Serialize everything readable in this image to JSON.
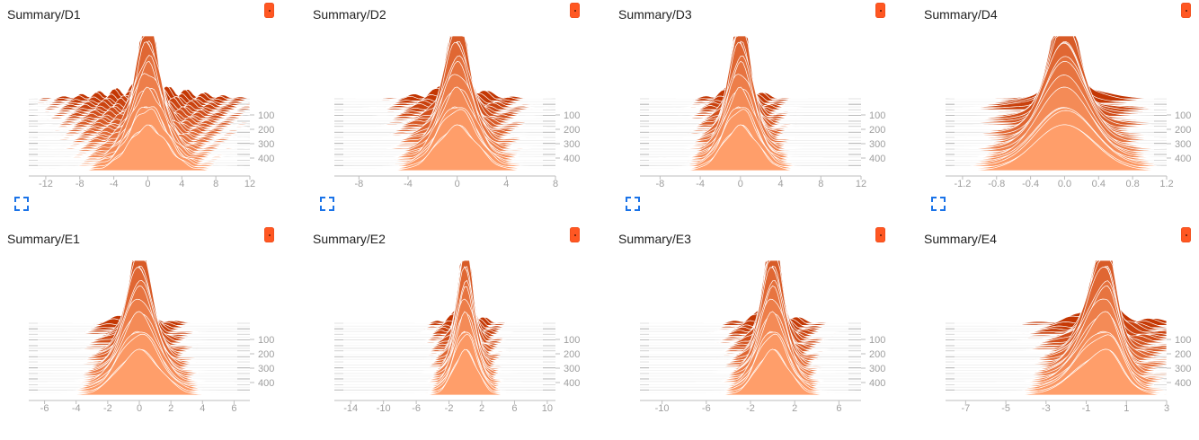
{
  "colors": {
    "accent": "#ff5722",
    "ridge_dark": "#c23400",
    "ridge_light": "#ff9e6a",
    "expand_icon": "#1a73e8"
  },
  "icons": {
    "pin": "pin-icon",
    "expand": "fullscreen-icon"
  },
  "chart_data": [
    {
      "type": "histogram",
      "title": "Summary/D1",
      "x_ticks": [
        "-12",
        "-8",
        "-4",
        "0",
        "4",
        "8",
        "12"
      ],
      "xlim": [
        -14,
        12
      ],
      "y_ticks": [
        "100",
        "200",
        "300",
        "400"
      ],
      "ylim": [
        0,
        500
      ],
      "center": 0,
      "sigma_start": 0.6,
      "sigma_end": 2.2,
      "skew": 0.0,
      "spread_tail": 5.0,
      "show_expand": true
    },
    {
      "type": "histogram",
      "title": "Summary/D2",
      "x_ticks": [
        "-8",
        "-4",
        "0",
        "4",
        "8"
      ],
      "xlim": [
        -10,
        8
      ],
      "y_ticks": [
        "100",
        "200",
        "300",
        "400"
      ],
      "ylim": [
        0,
        500
      ],
      "center": 0,
      "sigma_start": 0.5,
      "sigma_end": 1.6,
      "skew": 0.0,
      "spread_tail": 2.0,
      "show_expand": true
    },
    {
      "type": "histogram",
      "title": "Summary/D3",
      "x_ticks": [
        "-8",
        "-4",
        "0",
        "4",
        "8",
        "12"
      ],
      "xlim": [
        -10,
        12
      ],
      "y_ticks": [
        "100",
        "200",
        "300",
        "400"
      ],
      "ylim": [
        0,
        500
      ],
      "center": 0,
      "sigma_start": 0.5,
      "sigma_end": 1.7,
      "skew": 0.0,
      "spread_tail": 1.5,
      "show_expand": true
    },
    {
      "type": "histogram",
      "title": "Summary/D4",
      "x_ticks": [
        "-1.2",
        "-0.8",
        "-0.4",
        "0.0",
        "0.4",
        "0.8",
        "1.2"
      ],
      "xlim": [
        -1.4,
        1.2
      ],
      "y_ticks": [
        "100",
        "200",
        "300",
        "400"
      ],
      "ylim": [
        0,
        500
      ],
      "center": 0,
      "sigma_start": 0.1,
      "sigma_end": 0.35,
      "skew": 0.0,
      "spread_tail": 0.3,
      "show_expand": true
    },
    {
      "type": "histogram",
      "title": "Summary/E1",
      "x_ticks": [
        "-6",
        "-4",
        "-2",
        "0",
        "2",
        "4",
        "6"
      ],
      "xlim": [
        -7,
        7
      ],
      "y_ticks": [
        "100",
        "200",
        "300",
        "400"
      ],
      "ylim": [
        0,
        500
      ],
      "center": 0,
      "sigma_start": 0.35,
      "sigma_end": 1.3,
      "skew": 0.0,
      "spread_tail": 1.0,
      "show_expand": false
    },
    {
      "type": "histogram",
      "title": "Summary/E2",
      "x_ticks": [
        "-14",
        "-10",
        "-6",
        "-2",
        "2",
        "6",
        "10"
      ],
      "xlim": [
        -16,
        11
      ],
      "y_ticks": [
        "100",
        "200",
        "300",
        "400"
      ],
      "ylim": [
        0,
        500
      ],
      "center": 0,
      "sigma_start": 0.5,
      "sigma_end": 1.4,
      "skew": 0.0,
      "spread_tail": 1.5,
      "show_expand": false
    },
    {
      "type": "histogram",
      "title": "Summary/E3",
      "x_ticks": [
        "-10",
        "-6",
        "-2",
        "2",
        "6"
      ],
      "xlim": [
        -12,
        8
      ],
      "y_ticks": [
        "100",
        "200",
        "300",
        "400"
      ],
      "ylim": [
        0,
        500
      ],
      "center": 0,
      "sigma_start": 0.5,
      "sigma_end": 1.4,
      "skew": 0.0,
      "spread_tail": 1.5,
      "show_expand": false
    },
    {
      "type": "histogram",
      "title": "Summary/E4",
      "x_ticks": [
        "-7",
        "-5",
        "-3",
        "-1",
        "1",
        "3"
      ],
      "xlim": [
        -8,
        3
      ],
      "y_ticks": [
        "100",
        "200",
        "300",
        "400"
      ],
      "ylim": [
        0,
        500
      ],
      "center": 0,
      "sigma_start": 0.25,
      "sigma_end": 0.8,
      "skew": -2.2,
      "spread_tail": 1.5,
      "show_expand": false
    }
  ]
}
